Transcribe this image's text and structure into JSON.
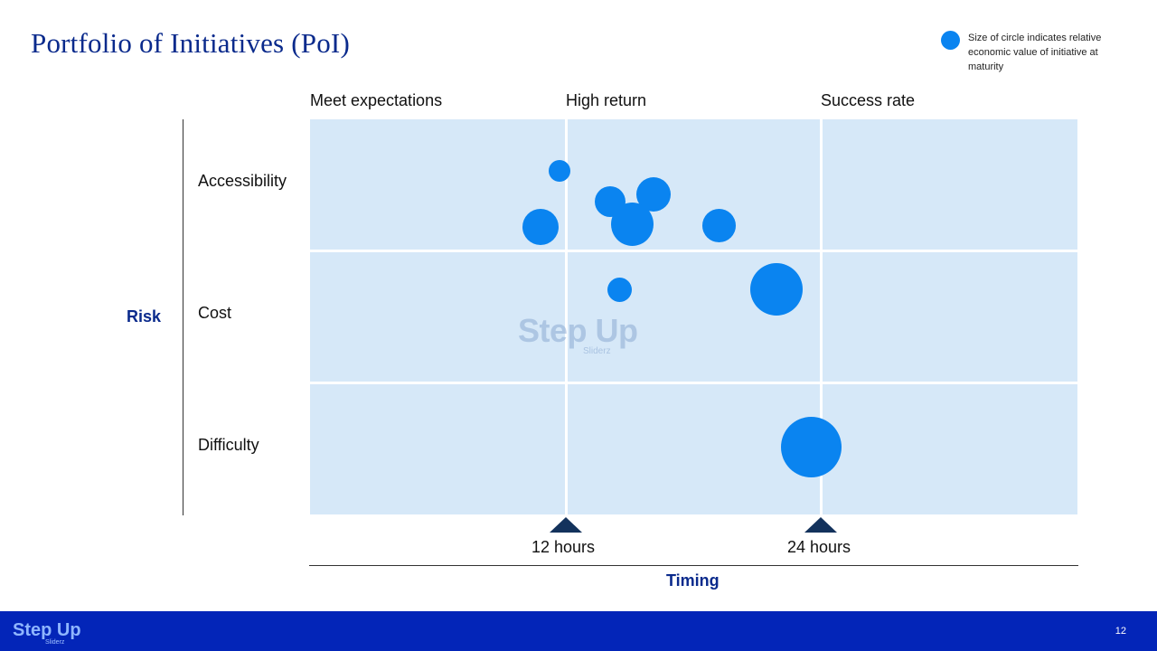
{
  "title": "Portfolio of Initiatives (PoI)",
  "legend": {
    "text": "Size of circle indicates relative economic value of initiative at maturity",
    "color": "#0a84f0"
  },
  "columns": [
    "Meet expectations",
    "High return",
    "Success rate"
  ],
  "rows": [
    "Accessibility",
    "Cost",
    "Difficulty"
  ],
  "y_axis_label": "Risk",
  "x_axis_label": "Timing",
  "ticks": [
    "12 hours",
    "24 hours"
  ],
  "watermark": {
    "main": "Step Up",
    "sub": "Sliderz"
  },
  "footer": {
    "logo": "Step Up",
    "logo_sub": "Sliderz",
    "page_number": "12"
  },
  "colors": {
    "title": "#0a2a8c",
    "grid_bg": "#d6e8f8",
    "bubble": "#0a84f0",
    "footer": "#0325b8",
    "marker": "#13325c"
  }
}
